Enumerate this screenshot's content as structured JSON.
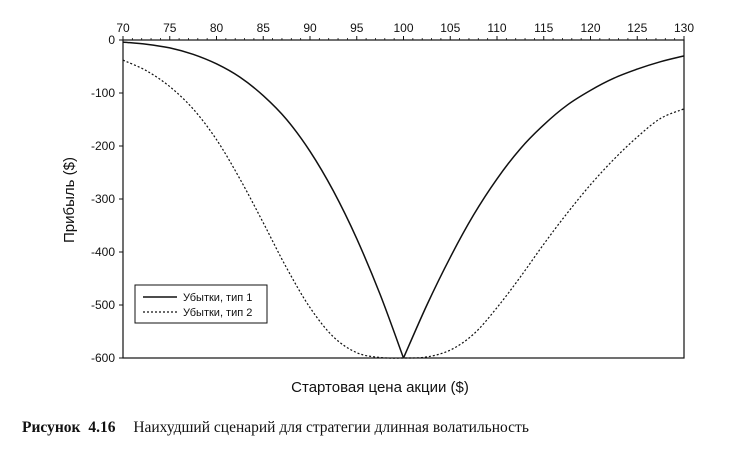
{
  "chart_data": {
    "type": "line",
    "xlabel": "Стартовая цена акции ($)",
    "ylabel": "Прибыль ($)",
    "xlim": [
      70,
      130
    ],
    "ylim": [
      -600,
      0
    ],
    "x_ticks": [
      70,
      75,
      80,
      85,
      90,
      95,
      100,
      105,
      110,
      115,
      120,
      125,
      130
    ],
    "y_ticks": [
      0,
      -100,
      -200,
      -300,
      -400,
      -500,
      -600
    ],
    "x_axis_position": "top",
    "grid": false,
    "legend_position": "bottom-left",
    "series": [
      {
        "name": "Убытки, тип 1",
        "style": "solid",
        "color": "#111111",
        "x": [
          70,
          72.5,
          75,
          77.5,
          80,
          82.5,
          85,
          87.5,
          90,
          92.5,
          95,
          97.5,
          100,
          102.5,
          105,
          107.5,
          110,
          112.5,
          115,
          117.5,
          120,
          122.5,
          125,
          127.5,
          130
        ],
        "y": [
          -4,
          -8,
          -15,
          -27,
          -45,
          -70,
          -105,
          -150,
          -210,
          -285,
          -375,
          -480,
          -600,
          -500,
          -410,
          -330,
          -262,
          -205,
          -160,
          -123,
          -95,
          -72,
          -55,
          -41,
          -30
        ]
      },
      {
        "name": "Убытки, тип 2",
        "style": "dotted",
        "color": "#111111",
        "x": [
          70,
          72.5,
          75,
          77.5,
          80,
          82.5,
          85,
          87.5,
          90,
          92.5,
          95,
          97.5,
          100,
          102.5,
          105,
          107.5,
          110,
          112.5,
          115,
          117.5,
          120,
          122.5,
          125,
          127.5,
          130
        ],
        "y": [
          -38,
          -58,
          -88,
          -130,
          -188,
          -262,
          -345,
          -430,
          -505,
          -560,
          -590,
          -599,
          -600,
          -598,
          -585,
          -555,
          -505,
          -447,
          -385,
          -327,
          -273,
          -225,
          -183,
          -148,
          -130
        ]
      }
    ]
  },
  "caption": {
    "label": "Рисунок",
    "number": "4.16",
    "text": "Наихудший сценарий для стратегии длинная волатильность"
  }
}
